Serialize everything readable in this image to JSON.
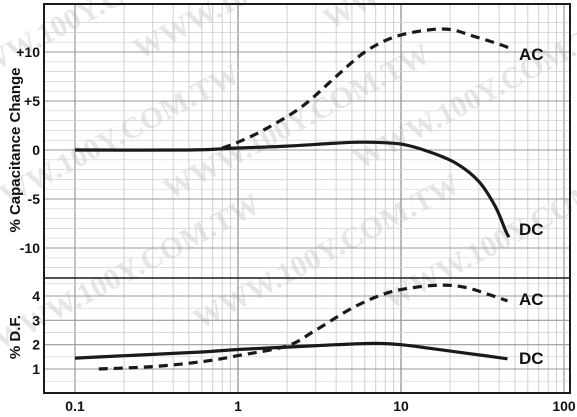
{
  "chart_data": [
    {
      "type": "line",
      "panel": "top",
      "ylabel": "% Capacitance Change",
      "xscale": "log",
      "xlim": [
        0.1,
        100
      ],
      "ylim": [
        -13,
        14
      ],
      "yticks": [
        {
          "value": 10,
          "label": "+10"
        },
        {
          "value": 5,
          "label": "+5"
        },
        {
          "value": 0,
          "label": "0"
        },
        {
          "value": -5,
          "label": "-5"
        },
        {
          "value": -10,
          "label": "-10"
        }
      ],
      "grid": true,
      "series": [
        {
          "name": "AC",
          "style": "dashed",
          "color": "#1a1a1a",
          "points": [
            [
              0.8,
              0.2
            ],
            [
              1.0,
              0.8
            ],
            [
              1.5,
              2.2
            ],
            [
              2.5,
              4.5
            ],
            [
              4,
              7.5
            ],
            [
              6,
              10
            ],
            [
              9,
              11.5
            ],
            [
              14,
              12.2
            ],
            [
              20,
              12.3
            ],
            [
              28,
              11.6
            ],
            [
              40,
              10.8
            ],
            [
              48,
              10.3
            ]
          ]
        },
        {
          "name": "DC",
          "style": "solid",
          "color": "#1a1a1a",
          "points": [
            [
              0.1,
              0
            ],
            [
              0.5,
              0
            ],
            [
              1.0,
              0.2
            ],
            [
              2,
              0.4
            ],
            [
              4,
              0.7
            ],
            [
              6,
              0.8
            ],
            [
              10,
              0.6
            ],
            [
              15,
              -0.2
            ],
            [
              22,
              -1.4
            ],
            [
              30,
              -3.2
            ],
            [
              38,
              -5.8
            ],
            [
              44,
              -8.3
            ],
            [
              46,
              -8.9
            ]
          ]
        }
      ]
    },
    {
      "type": "line",
      "panel": "bottom",
      "ylabel": "% D.F.",
      "xscale": "log",
      "xlim": [
        0.1,
        100
      ],
      "ylim": [
        0.5,
        4.9
      ],
      "yticks": [
        {
          "value": 4,
          "label": "4"
        },
        {
          "value": 3,
          "label": "3"
        },
        {
          "value": 2,
          "label": "2"
        },
        {
          "value": 1,
          "label": "1"
        }
      ],
      "grid": true,
      "series": [
        {
          "name": "AC",
          "style": "dashed",
          "color": "#1a1a1a",
          "points": [
            [
              0.14,
              1.0
            ],
            [
              0.3,
              1.1
            ],
            [
              0.6,
              1.3
            ],
            [
              1.0,
              1.55
            ],
            [
              2,
              1.95
            ],
            [
              3,
              2.6
            ],
            [
              5,
              3.5
            ],
            [
              8,
              4.1
            ],
            [
              12,
              4.35
            ],
            [
              18,
              4.45
            ],
            [
              25,
              4.35
            ],
            [
              35,
              4.05
            ],
            [
              45,
              3.8
            ]
          ]
        },
        {
          "name": "DC",
          "style": "solid",
          "color": "#1a1a1a",
          "points": [
            [
              0.1,
              1.45
            ],
            [
              0.3,
              1.6
            ],
            [
              0.6,
              1.7
            ],
            [
              1.0,
              1.8
            ],
            [
              2,
              1.9
            ],
            [
              4,
              2.0
            ],
            [
              7,
              2.05
            ],
            [
              10,
              2.0
            ],
            [
              15,
              1.85
            ],
            [
              25,
              1.65
            ],
            [
              35,
              1.52
            ],
            [
              45,
              1.42
            ]
          ]
        }
      ]
    }
  ],
  "xaxis": {
    "ticks": [
      {
        "value": 0.1,
        "label": "0.1"
      },
      {
        "value": 1,
        "label": "1"
      },
      {
        "value": 10,
        "label": "10"
      },
      {
        "value": 100,
        "label": "100"
      }
    ]
  },
  "watermark": "WWW.100Y.COM.TW"
}
